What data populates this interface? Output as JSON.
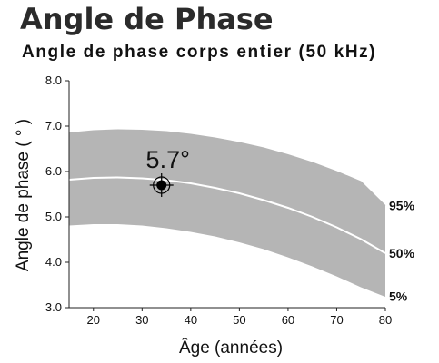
{
  "chart_data": {
    "type": "area",
    "title": "Angle de Phase",
    "subtitle": "Angle de phase corps entier (50 kHz)",
    "xlabel": "Âge (années)",
    "ylabel": "Angle de phase ( ° )",
    "xlim": [
      15,
      80
    ],
    "ylim": [
      3.0,
      8.0
    ],
    "x_ticks": [
      20,
      30,
      40,
      50,
      60,
      70,
      80
    ],
    "y_ticks": [
      "3.0",
      "4.0",
      "5.0",
      "6.0",
      "7.0",
      "8.0"
    ],
    "grid": false,
    "colors": {
      "band": "#b5b5b5",
      "median": "#ffffff",
      "marker": "#000000"
    },
    "series": [
      {
        "name": "95%",
        "x": [
          15,
          20,
          25,
          30,
          35,
          40,
          45,
          50,
          55,
          60,
          65,
          70,
          75,
          80
        ],
        "y": [
          6.85,
          6.9,
          6.92,
          6.91,
          6.88,
          6.82,
          6.74,
          6.64,
          6.52,
          6.37,
          6.2,
          6.0,
          5.78,
          5.25
        ]
      },
      {
        "name": "50%",
        "x": [
          15,
          20,
          25,
          30,
          35,
          40,
          45,
          50,
          55,
          60,
          65,
          70,
          75,
          80
        ],
        "y": [
          5.82,
          5.86,
          5.87,
          5.85,
          5.81,
          5.74,
          5.64,
          5.52,
          5.37,
          5.2,
          5.0,
          4.77,
          4.51,
          4.2
        ]
      },
      {
        "name": "5%",
        "x": [
          15,
          20,
          25,
          30,
          35,
          40,
          45,
          50,
          55,
          60,
          65,
          70,
          75,
          80
        ],
        "y": [
          4.82,
          4.85,
          4.85,
          4.82,
          4.76,
          4.68,
          4.58,
          4.45,
          4.3,
          4.12,
          3.92,
          3.7,
          3.46,
          3.25
        ]
      }
    ],
    "marker": {
      "x": 34,
      "y": 5.7,
      "label": "5.7°"
    }
  }
}
